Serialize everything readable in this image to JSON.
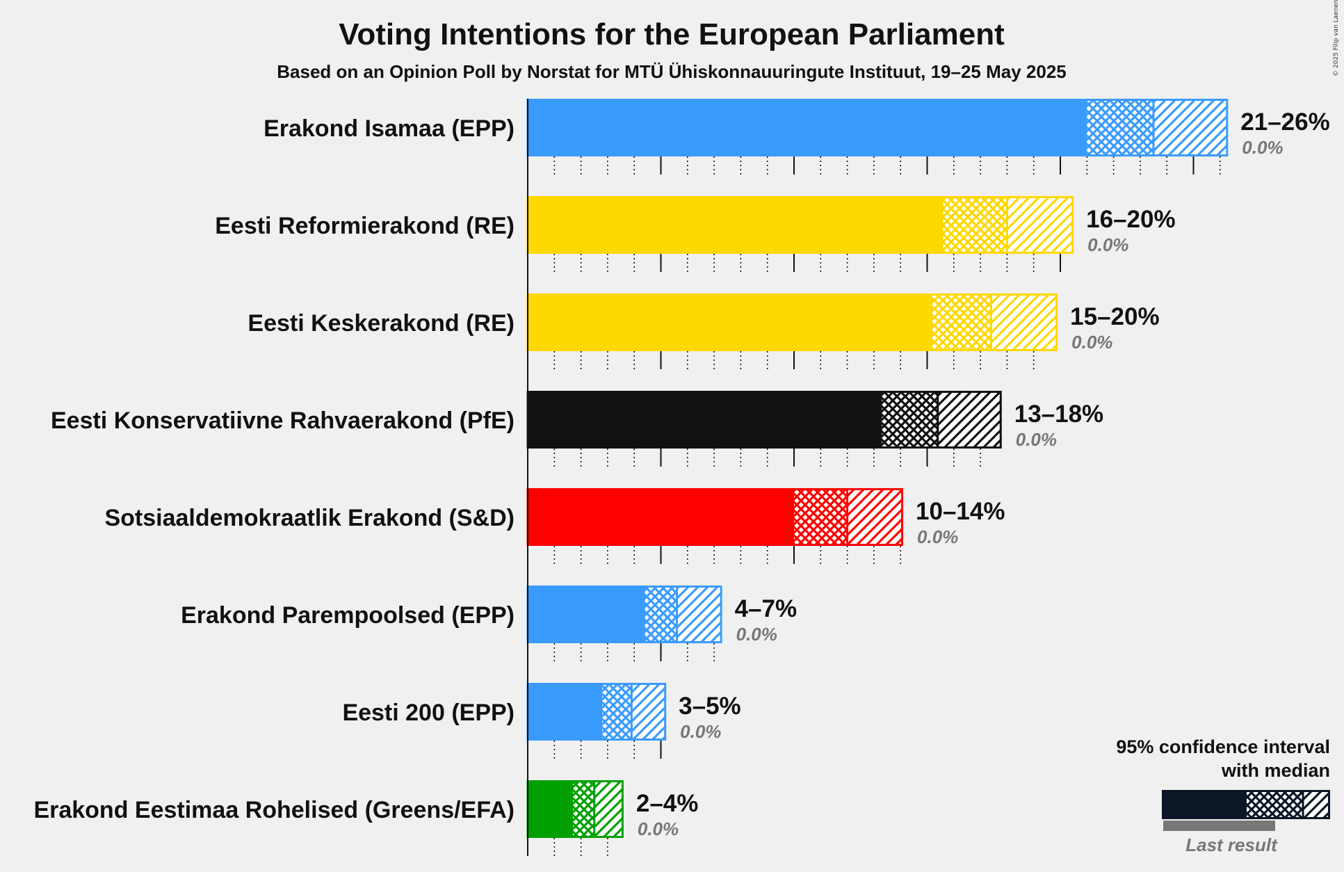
{
  "chart_data": {
    "type": "bar",
    "orientation": "horizontal",
    "title": "Voting Intentions for the European Parliament",
    "subtitle": "Based on an Opinion Poll by Norstat for MTÜ Ühiskonnauuringute Instituut, 19–25 May 2025",
    "copyright": "© 2025 Filip van Laenen",
    "xlim": [
      0,
      26.5
    ],
    "grid": true,
    "series": [
      {
        "party": "Erakond Isamaa (EPP)",
        "color": "#3a9bff",
        "low": 21.0,
        "median": 23.5,
        "high": 26.3,
        "range_label": "21–26%",
        "last_label": "0.0%"
      },
      {
        "party": "Eesti Reformierakond (RE)",
        "color": "#ffd800",
        "low": 15.6,
        "median": 18.0,
        "high": 20.5,
        "range_label": "16–20%",
        "last_label": "0.0%"
      },
      {
        "party": "Eesti Keskerakond (RE)",
        "color": "#ffd800",
        "low": 15.2,
        "median": 17.4,
        "high": 19.9,
        "range_label": "15–20%",
        "last_label": "0.0%"
      },
      {
        "party": "Eesti Konservatiivne Rahvaerakond (PfE)",
        "color": "#111111",
        "low": 13.3,
        "median": 15.4,
        "high": 17.8,
        "range_label": "13–18%",
        "last_label": "0.0%"
      },
      {
        "party": "Sotsiaaldemokraatlik Erakond (S&D)",
        "color": "#ff0000",
        "low": 10.0,
        "median": 12.0,
        "high": 14.1,
        "range_label": "10–14%",
        "last_label": "0.0%"
      },
      {
        "party": "Erakond Parempoolsed (EPP)",
        "color": "#3a9bff",
        "low": 4.4,
        "median": 5.6,
        "high": 7.3,
        "range_label": "4–7%",
        "last_label": "0.0%"
      },
      {
        "party": "Eesti 200 (EPP)",
        "color": "#3a9bff",
        "low": 2.8,
        "median": 3.9,
        "high": 5.2,
        "range_label": "3–5%",
        "last_label": "0.0%"
      },
      {
        "party": "Erakond Eestimaa Rohelised (Greens/EFA)",
        "color": "#00a000",
        "low": 1.7,
        "median": 2.5,
        "high": 3.6,
        "range_label": "2–4%",
        "last_label": "0.0%"
      }
    ],
    "legend": {
      "title_line1": "95% confidence interval",
      "title_line2": "with median",
      "last_result": "Last result",
      "placement": "bottom-right",
      "color": "#0b1726"
    }
  }
}
